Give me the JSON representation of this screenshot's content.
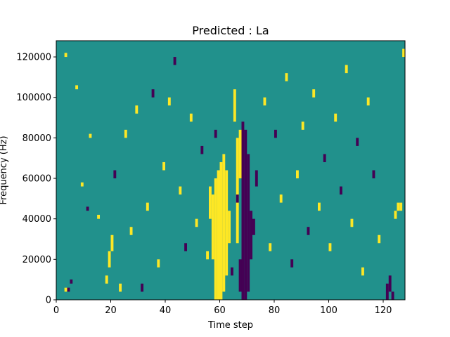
{
  "chart_data": {
    "type": "heatmap",
    "title": "Predicted : La",
    "xlabel": "Time step",
    "ylabel": "Frequency (Hz)",
    "xlim": [
      0,
      128
    ],
    "ylim": [
      0,
      128000
    ],
    "xticks": [
      0,
      20,
      40,
      60,
      80,
      100,
      120
    ],
    "yticks": [
      0,
      20000,
      40000,
      60000,
      80000,
      100000,
      120000
    ],
    "ytick_labels": [
      "0",
      "20000",
      "40000",
      "60000",
      "80000",
      "100000",
      "120000"
    ],
    "grid": false,
    "colormap": "viridis",
    "colors": {
      "low": "#440154",
      "mid": "#21918c",
      "high": "#fde725"
    },
    "value_levels": [
      -1,
      0,
      1
    ],
    "background_value": 0,
    "bins_per_column": 64,
    "bin_height_hz": 2000,
    "note_cells_format": "[time_step, frequency_bin_start, frequency_bin_end, value]",
    "cells": [
      [
        58,
        0,
        30,
        1
      ],
      [
        59,
        0,
        32,
        1
      ],
      [
        60,
        0,
        34,
        1
      ],
      [
        61,
        2,
        36,
        1
      ],
      [
        62,
        6,
        32,
        1
      ],
      [
        57,
        10,
        26,
        1
      ],
      [
        56,
        20,
        28,
        1
      ],
      [
        63,
        14,
        22,
        1
      ],
      [
        66,
        14,
        40,
        1
      ],
      [
        67,
        30,
        42,
        1
      ],
      [
        65,
        44,
        52,
        1
      ],
      [
        68,
        0,
        44,
        -1
      ],
      [
        69,
        0,
        42,
        -1
      ],
      [
        70,
        2,
        36,
        -1
      ],
      [
        71,
        10,
        22,
        -1
      ],
      [
        67,
        2,
        10,
        -1
      ],
      [
        72,
        16,
        20,
        -1
      ],
      [
        73,
        28,
        32,
        -1
      ],
      [
        58,
        40,
        42,
        -1
      ],
      [
        66,
        24,
        26,
        -1
      ],
      [
        64,
        6,
        8,
        -1
      ],
      [
        3,
        2,
        3,
        1
      ],
      [
        3,
        60,
        61,
        1
      ],
      [
        4,
        2,
        3,
        -1
      ],
      [
        5,
        4,
        5,
        -1
      ],
      [
        7,
        52,
        53,
        1
      ],
      [
        9,
        28,
        29,
        1
      ],
      [
        11,
        22,
        23,
        -1
      ],
      [
        12,
        40,
        41,
        1
      ],
      [
        15,
        20,
        21,
        1
      ],
      [
        18,
        4,
        6,
        1
      ],
      [
        19,
        8,
        12,
        1
      ],
      [
        20,
        12,
        16,
        1
      ],
      [
        21,
        30,
        32,
        -1
      ],
      [
        23,
        2,
        4,
        1
      ],
      [
        25,
        40,
        42,
        1
      ],
      [
        27,
        16,
        18,
        1
      ],
      [
        29,
        46,
        48,
        1
      ],
      [
        31,
        2,
        4,
        -1
      ],
      [
        33,
        22,
        24,
        1
      ],
      [
        35,
        50,
        52,
        -1
      ],
      [
        37,
        8,
        10,
        1
      ],
      [
        39,
        32,
        34,
        1
      ],
      [
        41,
        48,
        50,
        1
      ],
      [
        43,
        58,
        60,
        -1
      ],
      [
        45,
        26,
        28,
        1
      ],
      [
        47,
        12,
        14,
        -1
      ],
      [
        49,
        44,
        46,
        1
      ],
      [
        51,
        18,
        20,
        1
      ],
      [
        53,
        36,
        38,
        -1
      ],
      [
        55,
        10,
        12,
        1
      ],
      [
        76,
        48,
        50,
        1
      ],
      [
        78,
        12,
        14,
        1
      ],
      [
        80,
        40,
        42,
        -1
      ],
      [
        82,
        24,
        26,
        1
      ],
      [
        84,
        54,
        56,
        1
      ],
      [
        86,
        8,
        10,
        -1
      ],
      [
        88,
        30,
        32,
        1
      ],
      [
        90,
        42,
        44,
        1
      ],
      [
        92,
        16,
        18,
        -1
      ],
      [
        94,
        50,
        52,
        1
      ],
      [
        96,
        22,
        24,
        1
      ],
      [
        98,
        34,
        36,
        -1
      ],
      [
        100,
        12,
        14,
        1
      ],
      [
        102,
        44,
        46,
        1
      ],
      [
        104,
        26,
        28,
        -1
      ],
      [
        106,
        56,
        58,
        1
      ],
      [
        108,
        18,
        20,
        1
      ],
      [
        110,
        38,
        40,
        -1
      ],
      [
        112,
        6,
        8,
        1
      ],
      [
        114,
        48,
        50,
        1
      ],
      [
        116,
        30,
        32,
        -1
      ],
      [
        118,
        14,
        16,
        1
      ],
      [
        121,
        0,
        4,
        -1
      ],
      [
        122,
        2,
        6,
        -1
      ],
      [
        123,
        0,
        2,
        -1
      ],
      [
        124,
        20,
        22,
        1
      ],
      [
        125,
        22,
        24,
        1
      ],
      [
        126,
        22,
        24,
        1
      ],
      [
        127,
        60,
        62,
        1
      ]
    ]
  }
}
